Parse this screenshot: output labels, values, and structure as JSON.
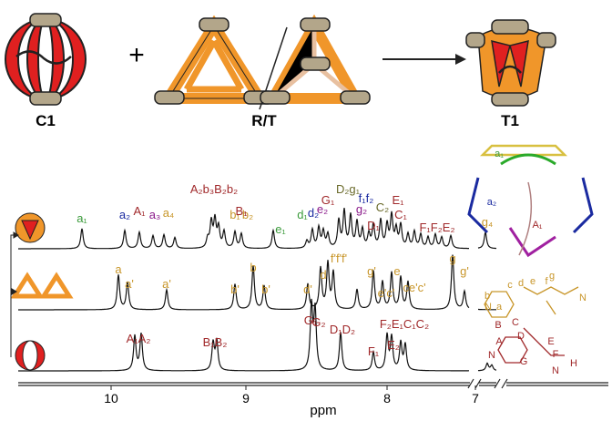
{
  "scheme": {
    "left": "C1",
    "plus": "+",
    "middle": "R/T",
    "right": "T1"
  },
  "axis": {
    "label": "ppm",
    "ticks": [
      "10",
      "9",
      "8",
      "7"
    ]
  },
  "spectra": {
    "top": {
      "labels": [
        "a₁",
        "a₂",
        "A₁",
        "a₃",
        "a₄",
        "A₂b₃B₂b₂",
        "b₁",
        "b₂",
        "B₁",
        "e₁",
        "d₁",
        "d₂",
        "e₂",
        "G₁",
        "D₂g₁",
        "f₁f₂",
        "g₂",
        "C₂",
        "D₁",
        "E₁",
        "C₁",
        "F₁F₂E₂",
        "g₄"
      ]
    },
    "middle": {
      "labels": [
        "a",
        "a'",
        "a'",
        "b'",
        "b",
        "b'",
        "d'",
        "d",
        "f'f'f'",
        "g'",
        "e'c'",
        "e",
        "ce'c'",
        "g",
        "g'"
      ]
    },
    "bottom": {
      "labels": [
        "A₁A₂",
        "B₁B₂",
        "G₁",
        "G₂",
        "D₁D₂",
        "F₁",
        "F₂E₁C₁C₂",
        "E₂"
      ]
    }
  },
  "structures": {
    "top": [
      "a₁",
      "a₂",
      "A₁"
    ],
    "middle": [
      "g",
      "c",
      "d",
      "e",
      "f",
      "b",
      "a",
      "N",
      "N"
    ],
    "bottom": [
      "B",
      "C",
      "D",
      "A",
      "N",
      "E",
      "F",
      "G",
      "H",
      "N"
    ]
  }
}
